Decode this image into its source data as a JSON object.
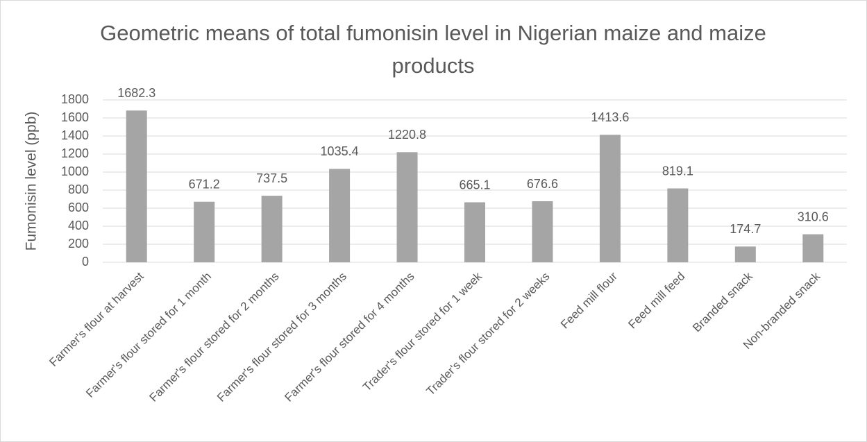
{
  "chart_data": {
    "type": "bar",
    "title": "Geometric means of total fumonisin level in Nigerian maize and maize products",
    "y_label": "Fumonisin level (ppb)",
    "categories": [
      "Farmer's flour at harvest",
      "Farmer's flour stored for 1 month",
      "Farmer's flour stored for 2 months",
      "Farmer's flour stored for 3 months",
      "Farmer's flour stored for 4 months",
      "Trader's flour stored for 1 week",
      "Trader's flour stored for 2 weeks",
      "Feed mill flour",
      "Feed mill feed",
      "Branded snack",
      "Non-branded snack"
    ],
    "values": [
      1682.3,
      671.2,
      737.5,
      1035.4,
      1220.8,
      665.1,
      676.6,
      1413.6,
      819.1,
      174.7,
      310.6
    ],
    "color": "#a5a5a5",
    "ylim": [
      0,
      1800
    ],
    "yticks": [
      0,
      200,
      400,
      600,
      800,
      1000,
      1200,
      1400,
      1600,
      1800
    ],
    "grid": true
  }
}
